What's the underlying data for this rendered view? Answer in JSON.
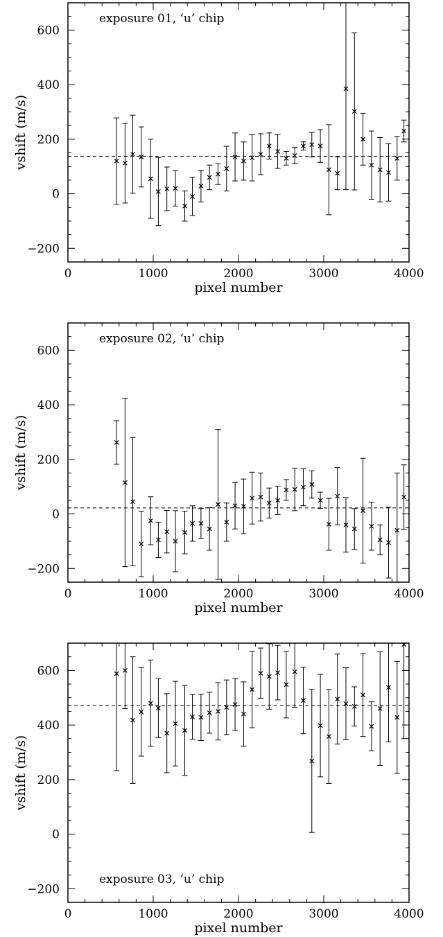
{
  "chart_data": [
    {
      "type": "scatter",
      "panel_label": "exposure 01, ‘u’ chip",
      "label_position": "top-left",
      "xlabel": "pixel number",
      "ylabel": "vshift (m/s)",
      "xlim": [
        0,
        4000
      ],
      "ylim": [
        -250,
        700
      ],
      "xticks": [
        0,
        1000,
        2000,
        3000,
        4000
      ],
      "yticks": [
        -200,
        0,
        200,
        400,
        600
      ],
      "mean_line": 137,
      "points": [
        {
          "x": 570,
          "y": 120,
          "err": 158
        },
        {
          "x": 670,
          "y": 112,
          "err": 146
        },
        {
          "x": 760,
          "y": 145,
          "err": 143
        },
        {
          "x": 860,
          "y": 135,
          "err": 110
        },
        {
          "x": 970,
          "y": 55,
          "err": 145
        },
        {
          "x": 1060,
          "y": 8,
          "err": 125
        },
        {
          "x": 1160,
          "y": 18,
          "err": 80
        },
        {
          "x": 1260,
          "y": 20,
          "err": 65
        },
        {
          "x": 1370,
          "y": -45,
          "err": 55
        },
        {
          "x": 1460,
          "y": -10,
          "err": 70
        },
        {
          "x": 1560,
          "y": 28,
          "err": 58
        },
        {
          "x": 1660,
          "y": 60,
          "err": 45
        },
        {
          "x": 1760,
          "y": 72,
          "err": 38
        },
        {
          "x": 1860,
          "y": 92,
          "err": 82
        },
        {
          "x": 1960,
          "y": 135,
          "err": 88
        },
        {
          "x": 2060,
          "y": 120,
          "err": 70
        },
        {
          "x": 2160,
          "y": 132,
          "err": 85
        },
        {
          "x": 2260,
          "y": 145,
          "err": 75
        },
        {
          "x": 2360,
          "y": 175,
          "err": 48
        },
        {
          "x": 2460,
          "y": 155,
          "err": 62
        },
        {
          "x": 2560,
          "y": 130,
          "err": 25
        },
        {
          "x": 2660,
          "y": 140,
          "err": 30
        },
        {
          "x": 2760,
          "y": 175,
          "err": 15
        },
        {
          "x": 2860,
          "y": 180,
          "err": 45
        },
        {
          "x": 2960,
          "y": 175,
          "err": 60
        },
        {
          "x": 3060,
          "y": 88,
          "err": 165
        },
        {
          "x": 3160,
          "y": 75,
          "err": 60
        },
        {
          "x": 3260,
          "y": 385,
          "err": 370
        },
        {
          "x": 3360,
          "y": 302,
          "err": 288
        },
        {
          "x": 3460,
          "y": 200,
          "err": 95
        },
        {
          "x": 3560,
          "y": 105,
          "err": 125
        },
        {
          "x": 3660,
          "y": 88,
          "err": 118
        },
        {
          "x": 3760,
          "y": 78,
          "err": 105
        },
        {
          "x": 3860,
          "y": 130,
          "err": 80
        },
        {
          "x": 3940,
          "y": 230,
          "err": 40
        }
      ]
    },
    {
      "type": "scatter",
      "panel_label": "exposure 02, ‘u’ chip",
      "label_position": "top-left",
      "xlabel": "pixel number",
      "ylabel": "vshift (m/s)",
      "xlim": [
        0,
        4000
      ],
      "ylim": [
        -250,
        700
      ],
      "xticks": [
        0,
        1000,
        2000,
        3000,
        4000
      ],
      "yticks": [
        -200,
        0,
        200,
        400,
        600
      ],
      "mean_line": 22,
      "points": [
        {
          "x": 570,
          "y": 262,
          "err": 80
        },
        {
          "x": 670,
          "y": 115,
          "err": 308
        },
        {
          "x": 760,
          "y": 45,
          "err": 235
        },
        {
          "x": 860,
          "y": -110,
          "err": 120
        },
        {
          "x": 970,
          "y": -25,
          "err": 88
        },
        {
          "x": 1060,
          "y": -95,
          "err": 65
        },
        {
          "x": 1160,
          "y": -65,
          "err": 78
        },
        {
          "x": 1260,
          "y": -100,
          "err": 112
        },
        {
          "x": 1370,
          "y": -68,
          "err": 78
        },
        {
          "x": 1460,
          "y": -35,
          "err": 65
        },
        {
          "x": 1560,
          "y": -35,
          "err": 55
        },
        {
          "x": 1660,
          "y": -55,
          "err": 78
        },
        {
          "x": 1760,
          "y": 35,
          "err": 275
        },
        {
          "x": 1860,
          "y": -30,
          "err": 70
        },
        {
          "x": 1960,
          "y": 30,
          "err": 85
        },
        {
          "x": 2060,
          "y": 28,
          "err": 100
        },
        {
          "x": 2160,
          "y": 58,
          "err": 95
        },
        {
          "x": 2260,
          "y": 62,
          "err": 88
        },
        {
          "x": 2360,
          "y": 40,
          "err": 55
        },
        {
          "x": 2460,
          "y": 50,
          "err": 52
        },
        {
          "x": 2560,
          "y": 88,
          "err": 38
        },
        {
          "x": 2660,
          "y": 90,
          "err": 78
        },
        {
          "x": 2760,
          "y": 98,
          "err": 68
        },
        {
          "x": 2860,
          "y": 108,
          "err": 50
        },
        {
          "x": 2960,
          "y": 50,
          "err": 30
        },
        {
          "x": 3060,
          "y": -38,
          "err": 95
        },
        {
          "x": 3160,
          "y": 65,
          "err": 105
        },
        {
          "x": 3260,
          "y": -40,
          "err": 100
        },
        {
          "x": 3360,
          "y": -55,
          "err": 75
        },
        {
          "x": 3460,
          "y": 12,
          "err": 192
        },
        {
          "x": 3560,
          "y": -45,
          "err": 88
        },
        {
          "x": 3660,
          "y": -95,
          "err": 55
        },
        {
          "x": 3760,
          "y": -105,
          "err": 130
        },
        {
          "x": 3860,
          "y": -60,
          "err": 210
        },
        {
          "x": 3940,
          "y": 62,
          "err": 118
        }
      ]
    },
    {
      "type": "scatter",
      "panel_label": "exposure 03, ‘u’ chip",
      "label_position": "bottom-left",
      "xlabel": "pixel number",
      "ylabel": "vshift (m/s)",
      "xlim": [
        0,
        4000
      ],
      "ylim": [
        -250,
        700
      ],
      "xticks": [
        0,
        1000,
        2000,
        3000,
        4000
      ],
      "yticks": [
        -200,
        0,
        200,
        400,
        600
      ],
      "mean_line": 472,
      "points": [
        {
          "x": 570,
          "y": 588,
          "err": 355
        },
        {
          "x": 670,
          "y": 600,
          "err": 140
        },
        {
          "x": 760,
          "y": 418,
          "err": 232
        },
        {
          "x": 860,
          "y": 448,
          "err": 162
        },
        {
          "x": 970,
          "y": 480,
          "err": 158
        },
        {
          "x": 1060,
          "y": 462,
          "err": 108
        },
        {
          "x": 1160,
          "y": 370,
          "err": 145
        },
        {
          "x": 1260,
          "y": 405,
          "err": 155
        },
        {
          "x": 1370,
          "y": 380,
          "err": 165
        },
        {
          "x": 1460,
          "y": 430,
          "err": 82
        },
        {
          "x": 1560,
          "y": 428,
          "err": 85
        },
        {
          "x": 1660,
          "y": 445,
          "err": 75
        },
        {
          "x": 1760,
          "y": 450,
          "err": 105
        },
        {
          "x": 1860,
          "y": 465,
          "err": 100
        },
        {
          "x": 1960,
          "y": 475,
          "err": 95
        },
        {
          "x": 2060,
          "y": 440,
          "err": 118
        },
        {
          "x": 2160,
          "y": 530,
          "err": 140
        },
        {
          "x": 2260,
          "y": 590,
          "err": 92
        },
        {
          "x": 2360,
          "y": 578,
          "err": 120
        },
        {
          "x": 2460,
          "y": 592,
          "err": 100
        },
        {
          "x": 2560,
          "y": 548,
          "err": 122
        },
        {
          "x": 2660,
          "y": 595,
          "err": 130
        },
        {
          "x": 2760,
          "y": 490,
          "err": 122
        },
        {
          "x": 2860,
          "y": 268,
          "err": 262
        },
        {
          "x": 2960,
          "y": 398,
          "err": 188
        },
        {
          "x": 3060,
          "y": 358,
          "err": 172
        },
        {
          "x": 3160,
          "y": 495,
          "err": 165
        },
        {
          "x": 3260,
          "y": 478,
          "err": 132
        },
        {
          "x": 3360,
          "y": 468,
          "err": 72
        },
        {
          "x": 3460,
          "y": 510,
          "err": 152
        },
        {
          "x": 3560,
          "y": 395,
          "err": 90
        },
        {
          "x": 3660,
          "y": 460,
          "err": 208
        },
        {
          "x": 3760,
          "y": 538,
          "err": 200
        },
        {
          "x": 3860,
          "y": 428,
          "err": 205
        },
        {
          "x": 3940,
          "y": 695,
          "err": 345
        }
      ]
    }
  ]
}
